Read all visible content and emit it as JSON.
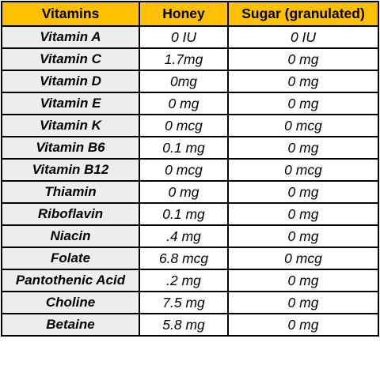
{
  "table": {
    "headers": [
      "Vitamins",
      "Honey",
      "Sugar (granulated)"
    ],
    "rows": [
      [
        "Vitamin A",
        "0 IU",
        "0 IU"
      ],
      [
        "Vitamin C",
        "1.7mg",
        "0 mg"
      ],
      [
        "Vitamin D",
        "0mg",
        "0 mg"
      ],
      [
        "Vitamin E",
        "0 mg",
        "0 mg"
      ],
      [
        "Vitamin K",
        "0 mcg",
        "0 mcg"
      ],
      [
        "Vitamin B6",
        "0.1 mg",
        "0 mg"
      ],
      [
        "Vitamin B12",
        "0 mcg",
        "0 mcg"
      ],
      [
        "Thiamin",
        "0 mg",
        "0 mg"
      ],
      [
        "Riboflavin",
        "0.1 mg",
        "0 mg"
      ],
      [
        "Niacin",
        ".4 mg",
        "0 mg"
      ],
      [
        "Folate",
        "6.8 mcg",
        "0 mcg"
      ],
      [
        "Pantothenic Acid",
        ".2 mg",
        "0 mg"
      ],
      [
        "Choline",
        "7.5 mg",
        "0 mg"
      ],
      [
        "Betaine",
        "5.8 mg",
        "0 mg"
      ]
    ]
  },
  "colors": {
    "header_background": "#FFC000",
    "label_column_background": "#EDEDED",
    "value_background": "#FFFFFF",
    "border": "#000000"
  }
}
